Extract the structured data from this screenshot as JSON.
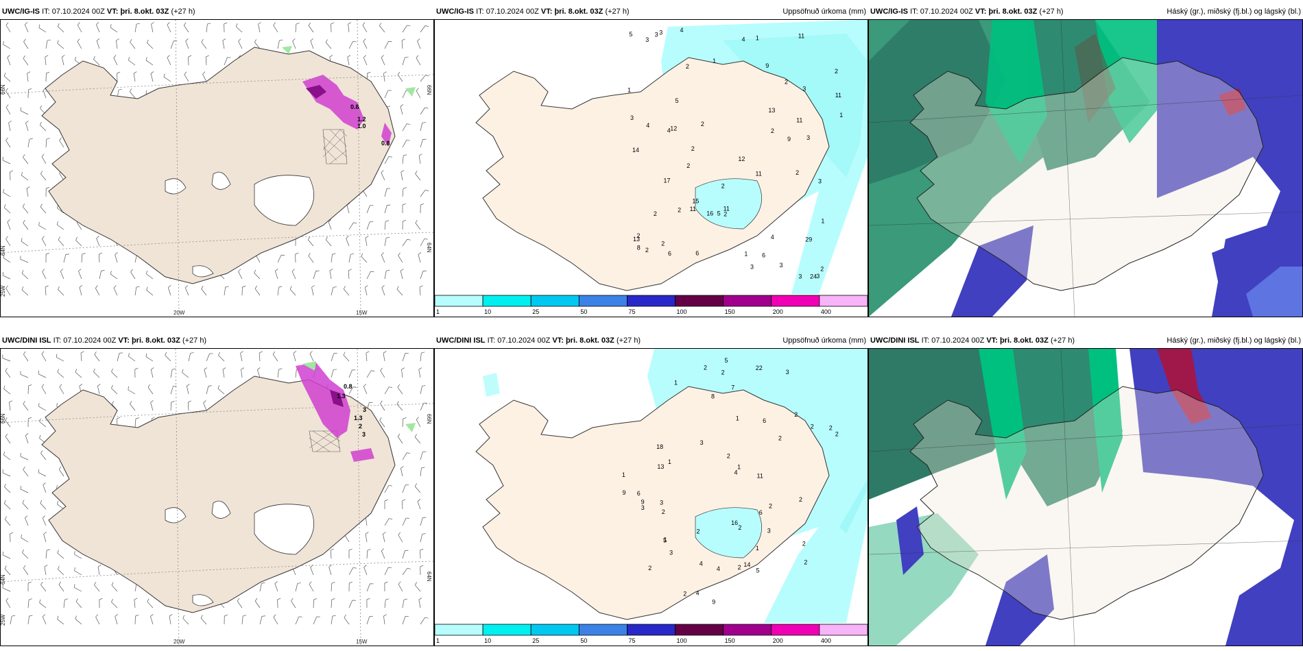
{
  "rows": [
    {
      "model": "UWC/IG-IS",
      "it_label": "IT:",
      "it_value": "07.10.2024 00Z",
      "vt_label": "VT:",
      "vt_value": "þri. 8.okt. 03Z",
      "lead": "(+27 h)",
      "wind_annotations": [
        "0.8",
        "1.2",
        "1.0",
        "0.8"
      ],
      "precip_values": [
        "2",
        "4",
        "3",
        "2",
        "3",
        "2",
        "5",
        "2",
        "11",
        "9",
        "3",
        "4",
        "5",
        "3",
        "2",
        "4",
        "12",
        "1",
        "2",
        "2",
        "24",
        "12",
        "6",
        "2",
        "29",
        "2",
        "1",
        "2",
        "3",
        "13",
        "15",
        "16",
        "2",
        "1",
        "2",
        "3",
        "4",
        "3",
        "17",
        "6",
        "14",
        "2",
        "3",
        "3",
        "2",
        "8",
        "11",
        "5",
        "4",
        "9",
        "3",
        "11",
        "11",
        "11",
        "11",
        "13",
        "6",
        "3",
        "2",
        "2",
        "1",
        "1",
        "1"
      ]
    },
    {
      "model": "UWC/DINI ISL",
      "it_label": "IT:",
      "it_value": "07.10.2024 00Z",
      "vt_label": "VT:",
      "vt_value": "þri. 8.okt. 03Z",
      "lead": "(+27 h)",
      "wind_annotations": [
        "0.8",
        "1.3",
        "3",
        "1.3",
        "2",
        "3"
      ],
      "precip_values": [
        "2",
        "3",
        "1",
        "2",
        "2",
        "1",
        "2",
        "1",
        "2",
        "2",
        "6",
        "5",
        "3",
        "4",
        "9",
        "2",
        "2",
        "1",
        "5",
        "4",
        "5",
        "2",
        "8",
        "1",
        "2",
        "4",
        "9",
        "22",
        "1",
        "2",
        "18",
        "3",
        "14",
        "16",
        "2",
        "3",
        "2",
        "11",
        "6",
        "2",
        "2",
        "7",
        "4",
        "3",
        "9",
        "13",
        "6",
        "2",
        "2",
        "1",
        "3",
        "2"
      ]
    }
  ],
  "precip_panel_title": "Uppsöfnuð úrkoma (mm)",
  "cloud_panel_title": "Háský (gr.), miðský (fj.bl.) og lágský (bl.)",
  "grid_labels": {
    "lat_66": "66N",
    "lat_64": "64N",
    "lon_25": "25W",
    "lon_20": "20W",
    "lon_15": "15W"
  },
  "colorbar": {
    "ticks": [
      "1",
      "10",
      "25",
      "50",
      "75",
      "100",
      "150",
      "200",
      "400"
    ],
    "colors": [
      "#b8fdfd",
      "#00f0f0",
      "#00c8f0",
      "#3c82e6",
      "#2828c8",
      "#640046",
      "#a0008c",
      "#f000b4",
      "#f8b4f8"
    ]
  },
  "colors": {
    "land": "#f0e4d7",
    "land_precip": "#fdf1e4",
    "precip_light": "#b8fdfd",
    "high_cloud": "#3a8a6a",
    "mid_cloud": "#00c080",
    "low_cloud": "#4040c0",
    "dense_low": "#a0184a"
  }
}
